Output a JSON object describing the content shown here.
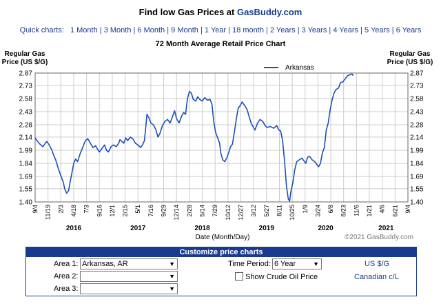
{
  "header": {
    "title_prefix": "Find low Gas Prices at ",
    "brand": "GasBuddy.com"
  },
  "quick_charts": {
    "label": "Quick charts:",
    "items": [
      "1 Month",
      "3 Month",
      "6 Month",
      "9 Month",
      "1 Year",
      "18 month",
      "2 Years",
      "3 Years",
      "4 Years",
      "5 Years",
      "6 Years"
    ]
  },
  "chart_data": {
    "type": "line",
    "title": "72 Month Average Retail Price Chart",
    "ylabel_left": [
      "Regular Gas",
      "Price (US $/G)"
    ],
    "ylabel_right": [
      "Regular Gas",
      "Price (US $/G)"
    ],
    "xlabel": "Date (Month/Day)",
    "copyright": "©2021 GasBuddy.com",
    "ylim": [
      1.4,
      2.87
    ],
    "yticks": [
      "2.87",
      "2.73",
      "2.58",
      "2.43",
      "2.28",
      "2.14",
      "1.99",
      "1.84",
      "1.69",
      "1.55",
      "1.40"
    ],
    "xticks": [
      "9/4",
      "11/19",
      "2/3",
      "4/18",
      "7/3",
      "9/16",
      "12/1",
      "2/15",
      "5/1",
      "7/16",
      "9/29",
      "12/14",
      "2/28",
      "5/14",
      "7/29",
      "10/12",
      "12/27",
      "3/12",
      "5/27",
      "8/11",
      "10/25",
      "1/9",
      "3/24",
      "6/8",
      "8/23",
      "11/6",
      "1/21",
      "4/6",
      "6/21",
      "9/4"
    ],
    "year_labels": [
      {
        "label": "2016",
        "tick": 3
      },
      {
        "label": "2017",
        "tick": 8
      },
      {
        "label": "2018",
        "tick": 13
      },
      {
        "label": "2019",
        "tick": 18
      },
      {
        "label": "2020",
        "tick": 22.6
      },
      {
        "label": "2021",
        "tick": 27.3
      }
    ],
    "legend": "Arkansas",
    "series": [
      {
        "name": "Arkansas",
        "color": "#1a4fb8",
        "values": [
          [
            0,
            2.13
          ],
          [
            0.3,
            2.07
          ],
          [
            0.6,
            2.03
          ],
          [
            0.9,
            2.09
          ],
          [
            1.1,
            2.05
          ],
          [
            1.3,
            1.99
          ],
          [
            1.4,
            1.95
          ],
          [
            1.6,
            1.88
          ],
          [
            1.8,
            1.78
          ],
          [
            2.0,
            1.7
          ],
          [
            2.2,
            1.62
          ],
          [
            2.3,
            1.55
          ],
          [
            2.45,
            1.5
          ],
          [
            2.6,
            1.53
          ],
          [
            2.75,
            1.65
          ],
          [
            2.9,
            1.76
          ],
          [
            3.0,
            1.84
          ],
          [
            3.15,
            1.89
          ],
          [
            3.3,
            1.86
          ],
          [
            3.5,
            1.95
          ],
          [
            3.7,
            2.02
          ],
          [
            3.9,
            2.1
          ],
          [
            4.1,
            2.12
          ],
          [
            4.3,
            2.07
          ],
          [
            4.5,
            2.02
          ],
          [
            4.7,
            2.04
          ],
          [
            4.9,
            1.99
          ],
          [
            5.0,
            1.97
          ],
          [
            5.2,
            2.01
          ],
          [
            5.4,
            2.05
          ],
          [
            5.55,
            1.99
          ],
          [
            5.7,
            1.97
          ],
          [
            5.9,
            2.03
          ],
          [
            6.1,
            2.05
          ],
          [
            6.3,
            2.03
          ],
          [
            6.5,
            2.07
          ],
          [
            6.6,
            2.11
          ],
          [
            6.75,
            2.09
          ],
          [
            6.9,
            2.07
          ],
          [
            7.05,
            2.13
          ],
          [
            7.2,
            2.1
          ],
          [
            7.4,
            2.14
          ],
          [
            7.6,
            2.12
          ],
          [
            7.8,
            2.07
          ],
          [
            8.0,
            2.05
          ],
          [
            8.2,
            2.02
          ],
          [
            8.35,
            2.05
          ],
          [
            8.5,
            2.1
          ],
          [
            8.6,
            2.24
          ],
          [
            8.7,
            2.4
          ],
          [
            8.85,
            2.36
          ],
          [
            9.0,
            2.3
          ],
          [
            9.2,
            2.28
          ],
          [
            9.4,
            2.22
          ],
          [
            9.55,
            2.14
          ],
          [
            9.7,
            2.18
          ],
          [
            9.9,
            2.27
          ],
          [
            10.1,
            2.32
          ],
          [
            10.3,
            2.34
          ],
          [
            10.5,
            2.3
          ],
          [
            10.7,
            2.38
          ],
          [
            10.85,
            2.44
          ],
          [
            11.0,
            2.35
          ],
          [
            11.2,
            2.3
          ],
          [
            11.4,
            2.38
          ],
          [
            11.55,
            2.42
          ],
          [
            11.7,
            2.4
          ],
          [
            11.85,
            2.58
          ],
          [
            12.0,
            2.66
          ],
          [
            12.15,
            2.64
          ],
          [
            12.3,
            2.57
          ],
          [
            12.5,
            2.55
          ],
          [
            12.65,
            2.6
          ],
          [
            12.8,
            2.57
          ],
          [
            13.0,
            2.55
          ],
          [
            13.2,
            2.59
          ],
          [
            13.4,
            2.56
          ],
          [
            13.6,
            2.57
          ],
          [
            13.75,
            2.52
          ],
          [
            13.9,
            2.31
          ],
          [
            14.05,
            2.19
          ],
          [
            14.2,
            2.13
          ],
          [
            14.35,
            2.07
          ],
          [
            14.45,
            1.95
          ],
          [
            14.6,
            1.88
          ],
          [
            14.75,
            1.86
          ],
          [
            14.9,
            1.9
          ],
          [
            15.05,
            1.96
          ],
          [
            15.2,
            2.03
          ],
          [
            15.35,
            2.06
          ],
          [
            15.5,
            2.2
          ],
          [
            15.65,
            2.35
          ],
          [
            15.8,
            2.47
          ],
          [
            15.95,
            2.5
          ],
          [
            16.1,
            2.54
          ],
          [
            16.3,
            2.5
          ],
          [
            16.5,
            2.45
          ],
          [
            16.65,
            2.37
          ],
          [
            16.8,
            2.3
          ],
          [
            16.95,
            2.26
          ],
          [
            17.1,
            2.22
          ],
          [
            17.3,
            2.3
          ],
          [
            17.5,
            2.34
          ],
          [
            17.7,
            2.32
          ],
          [
            17.9,
            2.27
          ],
          [
            18.05,
            2.25
          ],
          [
            18.3,
            2.26
          ],
          [
            18.55,
            2.24
          ],
          [
            18.8,
            2.27
          ],
          [
            18.95,
            2.22
          ],
          [
            19.1,
            2.21
          ],
          [
            19.25,
            2.1
          ],
          [
            19.4,
            1.87
          ],
          [
            19.55,
            1.58
          ],
          [
            19.7,
            1.43
          ],
          [
            19.8,
            1.41
          ],
          [
            19.9,
            1.52
          ],
          [
            20.05,
            1.62
          ],
          [
            20.2,
            1.77
          ],
          [
            20.35,
            1.86
          ],
          [
            20.55,
            1.88
          ],
          [
            20.75,
            1.9
          ],
          [
            20.9,
            1.87
          ],
          [
            21.05,
            1.84
          ],
          [
            21.2,
            1.91
          ],
          [
            21.35,
            1.92
          ],
          [
            21.55,
            1.88
          ],
          [
            21.75,
            1.86
          ],
          [
            21.95,
            1.82
          ],
          [
            22.05,
            1.8
          ],
          [
            22.2,
            1.84
          ],
          [
            22.35,
            1.96
          ],
          [
            22.5,
            2.02
          ],
          [
            22.65,
            2.22
          ],
          [
            22.8,
            2.3
          ],
          [
            22.95,
            2.45
          ],
          [
            23.1,
            2.56
          ],
          [
            23.25,
            2.64
          ],
          [
            23.4,
            2.68
          ],
          [
            23.6,
            2.7
          ],
          [
            23.75,
            2.76
          ],
          [
            23.95,
            2.77
          ],
          [
            24.1,
            2.8
          ],
          [
            24.3,
            2.84
          ],
          [
            24.5,
            2.85
          ],
          [
            24.65,
            2.86
          ],
          [
            24.75,
            2.84
          ]
        ]
      }
    ]
  },
  "customize": {
    "heading": "Customize price charts",
    "area1_label": "Area 1:",
    "area1_value": "Arkansas, AR",
    "area2_label": "Area 2:",
    "area2_value": "",
    "area3_label": "Area 3:",
    "area3_value": "",
    "time_period_label": "Time Period:",
    "time_period_value": "6 Year",
    "crude_label": "Show Crude Oil Price",
    "usd_link": "US $/G",
    "cad_link": "Canadian c/L"
  }
}
